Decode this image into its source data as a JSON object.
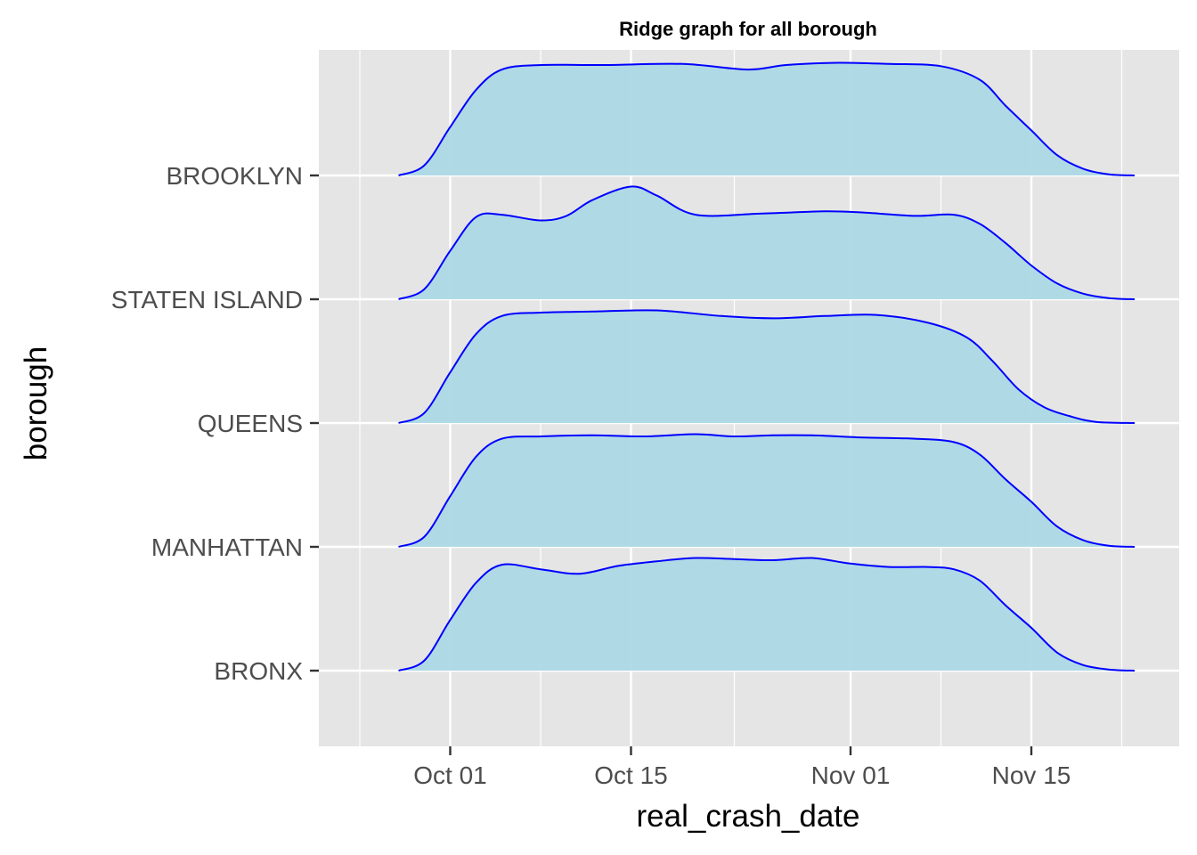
{
  "chart_data": {
    "type": "ridgeline",
    "title": "Ridge graph for all borough",
    "xlabel": "real_crash_date",
    "ylabel": "borough",
    "xlim": [
      "2023-09-24",
      "2023-11-25"
    ],
    "x_ticks": [
      {
        "date": "2023-10-01",
        "label": "Oct 01"
      },
      {
        "date": "2023-10-15",
        "label": "Oct 15"
      },
      {
        "date": "2023-11-01",
        "label": "Nov 01"
      },
      {
        "date": "2023-11-15",
        "label": "Nov 15"
      }
    ],
    "x_minor_dates": [
      "2023-09-24",
      "2023-10-08",
      "2023-10-23",
      "2023-11-08",
      "2023-11-22"
    ],
    "grid": true,
    "colors": {
      "fill": "#add8e6",
      "line": "#0000ff",
      "panel": "#e5e5e5",
      "grid": "#ffffff"
    },
    "series": [
      {
        "name": "BRONX",
        "x": [
          "2023-09-27",
          "2023-09-29",
          "2023-10-01",
          "2023-10-03",
          "2023-10-05",
          "2023-10-08",
          "2023-10-11",
          "2023-10-14",
          "2023-10-17",
          "2023-10-20",
          "2023-10-23",
          "2023-10-26",
          "2023-10-29",
          "2023-11-01",
          "2023-11-04",
          "2023-11-07",
          "2023-11-09",
          "2023-11-11",
          "2023-11-13",
          "2023-11-15",
          "2023-11-17",
          "2023-11-19",
          "2023-11-21",
          "2023-11-23"
        ],
        "y": [
          0.0,
          0.09,
          0.45,
          0.78,
          0.94,
          0.9,
          0.86,
          0.93,
          0.97,
          1.0,
          0.99,
          0.98,
          1.0,
          0.95,
          0.92,
          0.92,
          0.9,
          0.8,
          0.58,
          0.38,
          0.16,
          0.05,
          0.01,
          0.0
        ]
      },
      {
        "name": "MANHATTAN",
        "x": [
          "2023-09-27",
          "2023-09-29",
          "2023-10-01",
          "2023-10-03",
          "2023-10-05",
          "2023-10-08",
          "2023-10-12",
          "2023-10-16",
          "2023-10-20",
          "2023-10-23",
          "2023-10-26",
          "2023-10-29",
          "2023-11-02",
          "2023-11-06",
          "2023-11-09",
          "2023-11-11",
          "2023-11-13",
          "2023-11-15",
          "2023-11-17",
          "2023-11-19",
          "2023-11-21",
          "2023-11-23"
        ],
        "y": [
          0.0,
          0.09,
          0.45,
          0.8,
          0.96,
          0.98,
          0.99,
          0.98,
          1.0,
          0.98,
          0.99,
          0.99,
          0.97,
          0.96,
          0.93,
          0.82,
          0.6,
          0.4,
          0.18,
          0.06,
          0.01,
          0.0
        ]
      },
      {
        "name": "QUEENS",
        "x": [
          "2023-09-27",
          "2023-09-29",
          "2023-10-01",
          "2023-10-03",
          "2023-10-05",
          "2023-10-08",
          "2023-10-12",
          "2023-10-17",
          "2023-10-22",
          "2023-10-26",
          "2023-10-30",
          "2023-11-03",
          "2023-11-07",
          "2023-11-10",
          "2023-11-12",
          "2023-11-14",
          "2023-11-16",
          "2023-11-18",
          "2023-11-20",
          "2023-11-23"
        ],
        "y": [
          0.0,
          0.09,
          0.45,
          0.79,
          0.95,
          0.98,
          0.99,
          1.0,
          0.95,
          0.93,
          0.95,
          0.96,
          0.89,
          0.76,
          0.55,
          0.3,
          0.14,
          0.06,
          0.01,
          0.0
        ]
      },
      {
        "name": "STATEN ISLAND",
        "x": [
          "2023-09-27",
          "2023-09-29",
          "2023-10-01",
          "2023-10-03",
          "2023-10-05",
          "2023-10-08",
          "2023-10-10",
          "2023-10-12",
          "2023-10-15",
          "2023-10-17",
          "2023-10-20",
          "2023-10-25",
          "2023-10-30",
          "2023-11-02",
          "2023-11-06",
          "2023-11-09",
          "2023-11-11",
          "2023-11-13",
          "2023-11-15",
          "2023-11-17",
          "2023-11-19",
          "2023-11-21",
          "2023-11-23"
        ],
        "y": [
          0.0,
          0.09,
          0.43,
          0.73,
          0.75,
          0.7,
          0.74,
          0.88,
          1.0,
          0.92,
          0.75,
          0.76,
          0.78,
          0.77,
          0.74,
          0.75,
          0.67,
          0.5,
          0.3,
          0.14,
          0.05,
          0.01,
          0.0
        ]
      },
      {
        "name": "BROOKLYN",
        "x": [
          "2023-09-27",
          "2023-09-29",
          "2023-10-01",
          "2023-10-03",
          "2023-10-05",
          "2023-10-08",
          "2023-10-13",
          "2023-10-19",
          "2023-10-24",
          "2023-10-27",
          "2023-10-31",
          "2023-11-04",
          "2023-11-08",
          "2023-11-11",
          "2023-11-13",
          "2023-11-15",
          "2023-11-17",
          "2023-11-19",
          "2023-11-21",
          "2023-11-23"
        ],
        "y": [
          0.0,
          0.09,
          0.43,
          0.76,
          0.94,
          0.98,
          0.98,
          0.99,
          0.94,
          0.98,
          1.0,
          0.99,
          0.97,
          0.85,
          0.62,
          0.4,
          0.18,
          0.06,
          0.01,
          0.0
        ]
      }
    ]
  }
}
